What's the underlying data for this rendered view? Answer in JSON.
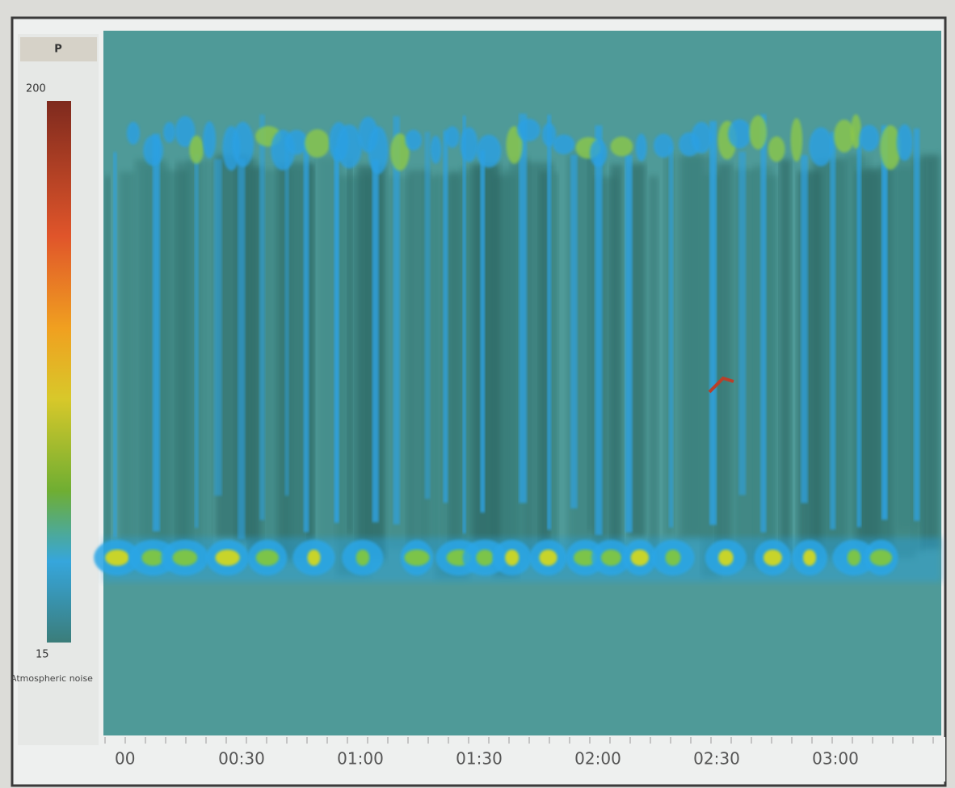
{
  "colorbar": {
    "title": "P",
    "max_label": "200",
    "min_label": "15",
    "caption": "Atmospheric noise"
  },
  "time_axis": {
    "labels": [
      "00",
      "00:30",
      "01:00",
      "01:30",
      "02:00",
      "02:30",
      "03:00"
    ]
  }
}
